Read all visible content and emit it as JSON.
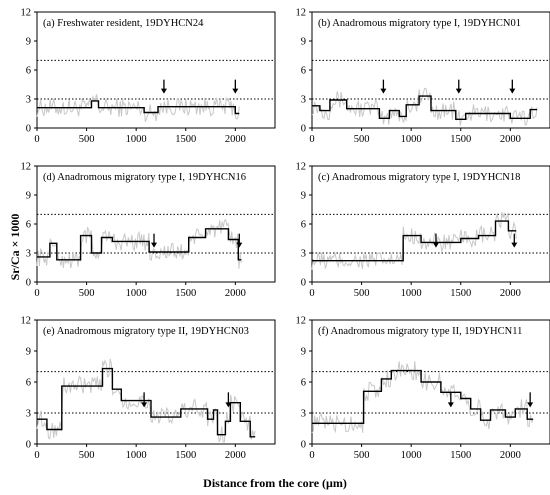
{
  "figure": {
    "ylabel": "Sr/Ca × 1000",
    "xlabel": "Distance from the core (μm)"
  },
  "chart_data": [
    {
      "type": "line",
      "panel": "a",
      "title": "(a) Freshwater resident, 19DYHCN24",
      "xlim": [
        0,
        2400
      ],
      "ylim": [
        0,
        12
      ],
      "xticks": [
        0,
        500,
        1000,
        1500,
        2000
      ],
      "yticks": [
        0,
        3,
        6,
        9,
        12
      ],
      "reference_lines": [
        3,
        7
      ],
      "arrows": [
        1280,
        2000
      ],
      "stepped_mean": [
        [
          0,
          2.1
        ],
        [
          550,
          2.1
        ],
        [
          550,
          2.8
        ],
        [
          620,
          2.8
        ],
        [
          620,
          2.1
        ],
        [
          1080,
          2.1
        ],
        [
          1080,
          1.6
        ],
        [
          1220,
          1.6
        ],
        [
          1220,
          2.2
        ],
        [
          2000,
          2.2
        ],
        [
          2000,
          1.5
        ],
        [
          2040,
          1.5
        ]
      ],
      "raw_range": [
        0,
        2040
      ]
    },
    {
      "type": "line",
      "panel": "b",
      "title": "(b) Anadromous migratory type I, 19DYHCN01",
      "xlim": [
        0,
        2400
      ],
      "ylim": [
        0,
        12
      ],
      "xticks": [
        0,
        500,
        1000,
        1500,
        2000
      ],
      "yticks": [
        0,
        3,
        6,
        9,
        12
      ],
      "reference_lines": [
        3,
        7
      ],
      "arrows": [
        720,
        1480,
        2020
      ],
      "stepped_mean": [
        [
          0,
          2.3
        ],
        [
          80,
          2.3
        ],
        [
          80,
          1.8
        ],
        [
          180,
          1.8
        ],
        [
          180,
          2.9
        ],
        [
          350,
          2.9
        ],
        [
          350,
          2.0
        ],
        [
          680,
          2.0
        ],
        [
          680,
          1.0
        ],
        [
          780,
          1.0
        ],
        [
          780,
          1.8
        ],
        [
          880,
          1.8
        ],
        [
          880,
          1.2
        ],
        [
          950,
          1.2
        ],
        [
          950,
          2.4
        ],
        [
          1080,
          2.4
        ],
        [
          1080,
          3.3
        ],
        [
          1200,
          3.3
        ],
        [
          1200,
          1.8
        ],
        [
          1450,
          1.8
        ],
        [
          1450,
          0.9
        ],
        [
          1550,
          0.9
        ],
        [
          1550,
          1.5
        ],
        [
          2000,
          1.5
        ],
        [
          2000,
          1.0
        ],
        [
          2200,
          1.0
        ],
        [
          2200,
          1.9
        ],
        [
          2270,
          1.9
        ]
      ],
      "raw_range": [
        0,
        2270
      ]
    },
    {
      "type": "line",
      "panel": "d",
      "title": "(d) Anadromous migratory type I, 19DYHCN16",
      "xlim": [
        0,
        2400
      ],
      "ylim": [
        0,
        12
      ],
      "xticks": [
        0,
        500,
        1000,
        1500,
        2000
      ],
      "yticks": [
        0,
        3,
        6,
        9,
        12
      ],
      "reference_lines": [
        3,
        7
      ],
      "arrows": [
        1180,
        2040
      ],
      "stepped_mean": [
        [
          0,
          2.6
        ],
        [
          130,
          2.6
        ],
        [
          130,
          4.0
        ],
        [
          200,
          4.0
        ],
        [
          200,
          2.3
        ],
        [
          440,
          2.3
        ],
        [
          440,
          4.8
        ],
        [
          550,
          4.8
        ],
        [
          550,
          3.0
        ],
        [
          650,
          3.0
        ],
        [
          650,
          4.6
        ],
        [
          760,
          4.6
        ],
        [
          760,
          4.2
        ],
        [
          1130,
          4.2
        ],
        [
          1130,
          3.1
        ],
        [
          1530,
          3.1
        ],
        [
          1530,
          4.6
        ],
        [
          1700,
          4.6
        ],
        [
          1700,
          5.5
        ],
        [
          1930,
          5.5
        ],
        [
          1930,
          4.4
        ],
        [
          2030,
          4.4
        ],
        [
          2030,
          2.3
        ],
        [
          2060,
          2.3
        ]
      ],
      "raw_range": [
        0,
        2060
      ]
    },
    {
      "type": "line",
      "panel": "c",
      "title": "(c) Anadromous migratory type I, 19DYHCN18",
      "xlim": [
        0,
        2400
      ],
      "ylim": [
        0,
        12
      ],
      "xticks": [
        0,
        500,
        1000,
        1500,
        2000
      ],
      "yticks": [
        0,
        3,
        6,
        9,
        12
      ],
      "reference_lines": [
        3,
        7
      ],
      "arrows": [
        1250,
        2040
      ],
      "stepped_mean": [
        [
          0,
          2.2
        ],
        [
          920,
          2.2
        ],
        [
          920,
          4.8
        ],
        [
          1100,
          4.8
        ],
        [
          1100,
          4.1
        ],
        [
          1500,
          4.1
        ],
        [
          1500,
          4.5
        ],
        [
          1680,
          4.5
        ],
        [
          1680,
          4.8
        ],
        [
          1850,
          4.8
        ],
        [
          1850,
          6.3
        ],
        [
          1980,
          6.3
        ],
        [
          1980,
          5.3
        ],
        [
          2060,
          5.3
        ]
      ],
      "raw_range": [
        0,
        2060
      ]
    },
    {
      "type": "line",
      "panel": "e",
      "title": "(e) Anadromous migratory type II, 19DYHCN03",
      "xlim": [
        0,
        2400
      ],
      "ylim": [
        0,
        12
      ],
      "xticks": [
        0,
        500,
        1000,
        1500,
        2000
      ],
      "yticks": [
        0,
        3,
        6,
        9,
        12
      ],
      "reference_lines": [
        3,
        7
      ],
      "arrows": [
        1080,
        1930
      ],
      "stepped_mean": [
        [
          0,
          2.4
        ],
        [
          100,
          2.4
        ],
        [
          100,
          1.4
        ],
        [
          250,
          1.4
        ],
        [
          250,
          5.6
        ],
        [
          660,
          5.6
        ],
        [
          660,
          7.3
        ],
        [
          760,
          7.3
        ],
        [
          760,
          5.3
        ],
        [
          850,
          5.3
        ],
        [
          850,
          4.2
        ],
        [
          1150,
          4.2
        ],
        [
          1150,
          2.6
        ],
        [
          1450,
          2.6
        ],
        [
          1450,
          3.4
        ],
        [
          1720,
          3.4
        ],
        [
          1720,
          2.4
        ],
        [
          1780,
          2.4
        ],
        [
          1780,
          3.3
        ],
        [
          1820,
          3.3
        ],
        [
          1820,
          0.9
        ],
        [
          1900,
          0.9
        ],
        [
          1900,
          2.2
        ],
        [
          1950,
          2.2
        ],
        [
          1950,
          4.0
        ],
        [
          2050,
          4.0
        ],
        [
          2050,
          2.2
        ],
        [
          2150,
          2.2
        ],
        [
          2150,
          0.7
        ],
        [
          2200,
          0.7
        ]
      ],
      "raw_range": [
        0,
        2200
      ]
    },
    {
      "type": "line",
      "panel": "f",
      "title": "(f) Anadromous migratory type II, 19DYHCN11",
      "xlim": [
        0,
        2400
      ],
      "ylim": [
        0,
        12
      ],
      "xticks": [
        0,
        500,
        1000,
        1500,
        2000
      ],
      "yticks": [
        0,
        3,
        6,
        9,
        12
      ],
      "reference_lines": [
        3,
        7
      ],
      "arrows": [
        1400,
        2200
      ],
      "stepped_mean": [
        [
          0,
          2.0
        ],
        [
          520,
          2.0
        ],
        [
          520,
          5.1
        ],
        [
          700,
          5.1
        ],
        [
          700,
          6.3
        ],
        [
          800,
          6.3
        ],
        [
          800,
          7.1
        ],
        [
          1100,
          7.1
        ],
        [
          1100,
          6.0
        ],
        [
          1300,
          6.0
        ],
        [
          1300,
          5.0
        ],
        [
          1500,
          5.0
        ],
        [
          1500,
          4.4
        ],
        [
          1600,
          4.4
        ],
        [
          1600,
          3.4
        ],
        [
          1700,
          3.4
        ],
        [
          1700,
          2.3
        ],
        [
          1800,
          2.3
        ],
        [
          1800,
          3.3
        ],
        [
          1950,
          3.3
        ],
        [
          1950,
          2.6
        ],
        [
          2050,
          2.6
        ],
        [
          2050,
          3.4
        ],
        [
          2170,
          3.4
        ],
        [
          2170,
          2.4
        ],
        [
          2230,
          2.4
        ]
      ],
      "raw_range": [
        0,
        2230
      ]
    }
  ]
}
